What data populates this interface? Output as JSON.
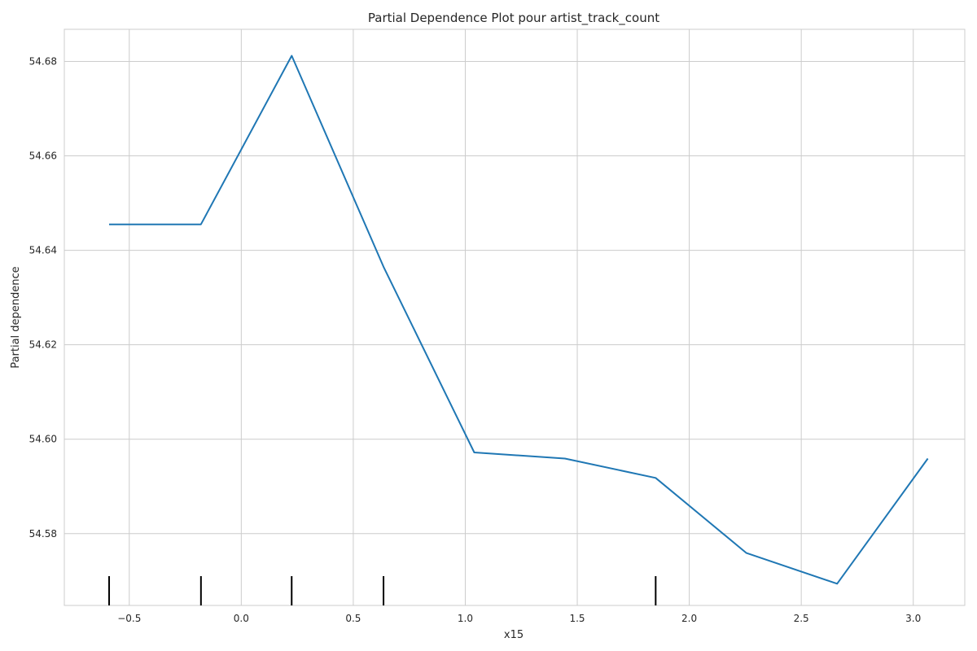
{
  "chart_data": {
    "type": "line",
    "title": "Partial Dependence Plot pour artist_track_count",
    "xlabel": "x15",
    "ylabel": "Partial dependence",
    "xlim": [
      -0.79,
      3.23
    ],
    "ylim": [
      54.5648,
      54.6868
    ],
    "xticks": [
      -0.5,
      0.0,
      0.5,
      1.0,
      1.5,
      2.0,
      2.5,
      3.0
    ],
    "xtick_labels": [
      "−0.5",
      "0.0",
      "0.5",
      "1.0",
      "1.5",
      "2.0",
      "2.5",
      "3.0"
    ],
    "yticks": [
      54.58,
      54.6,
      54.62,
      54.64,
      54.66,
      54.68
    ],
    "ytick_labels": [
      "54.58",
      "54.60",
      "54.62",
      "54.64",
      "54.66",
      "54.68"
    ],
    "grid": true,
    "series": [
      {
        "color": "#1f77b4",
        "x": [
          -0.59,
          -0.18,
          0.225,
          0.635,
          1.04,
          1.445,
          1.85,
          2.255,
          2.66,
          3.065
        ],
        "y": [
          54.6455,
          54.6455,
          54.6812,
          54.6365,
          54.5972,
          54.5959,
          54.5918,
          54.5759,
          54.5694,
          54.5959
        ]
      }
    ],
    "rug": {
      "color": "#000000",
      "x": [
        -0.59,
        -0.18,
        0.225,
        0.635,
        1.85
      ]
    }
  }
}
